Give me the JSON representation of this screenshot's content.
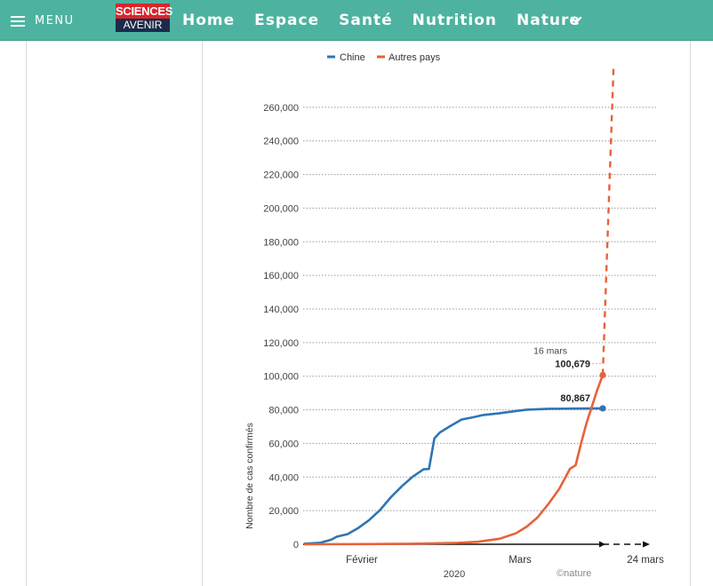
{
  "header": {
    "menu_label": "MENU",
    "logo_top": "SCIENCES",
    "logo_bottom": "AVENIR",
    "nav": [
      "Home",
      "Espace",
      "Santé",
      "Nutrition",
      "Nature"
    ],
    "colors": {
      "bar": "#4db3a0",
      "logo_red": "#d8262c",
      "logo_navy": "#1c2b4a"
    }
  },
  "chart_data": {
    "type": "line",
    "title": "",
    "xlabel": "2020",
    "ylabel": "Nombre de cas confirmés",
    "ylim": [
      0,
      280000
    ],
    "y_ticks": [
      "0",
      "20,000",
      "40,000",
      "60,000",
      "80,000",
      "100,000",
      "120,000",
      "140,000",
      "160,000",
      "180,000",
      "200,000",
      "220,000",
      "240,000",
      "260,000"
    ],
    "x_ticks": [
      "Février",
      "Mars",
      "24 mars"
    ],
    "grid": "dotted-horizontal",
    "legend": {
      "placement": "top-left",
      "entries": [
        {
          "name": "Chine",
          "color": "#2f74b5"
        },
        {
          "name": "Autres pays",
          "color": "#e8613a"
        }
      ]
    },
    "series": [
      {
        "name": "Chine",
        "color": "#2f74b5",
        "points": [
          [
            "2020-01-21",
            300
          ],
          [
            "2020-01-24",
            900
          ],
          [
            "2020-01-26",
            2700
          ],
          [
            "2020-01-27",
            4500
          ],
          [
            "2020-01-29",
            6000
          ],
          [
            "2020-01-31",
            9700
          ],
          [
            "2020-02-02",
            14400
          ],
          [
            "2020-02-04",
            20400
          ],
          [
            "2020-02-06",
            28000
          ],
          [
            "2020-02-08",
            34500
          ],
          [
            "2020-02-10",
            40200
          ],
          [
            "2020-02-12",
            44600
          ],
          [
            "2020-02-13",
            44800
          ],
          [
            "2020-02-14",
            63000
          ],
          [
            "2020-02-15",
            66500
          ],
          [
            "2020-02-17",
            70500
          ],
          [
            "2020-02-19",
            74200
          ],
          [
            "2020-02-21",
            75500
          ],
          [
            "2020-02-23",
            76900
          ],
          [
            "2020-02-26",
            78000
          ],
          [
            "2020-02-29",
            79300
          ],
          [
            "2020-03-02",
            80100
          ],
          [
            "2020-03-06",
            80600
          ],
          [
            "2020-03-10",
            80750
          ],
          [
            "2020-03-16",
            80867
          ]
        ]
      },
      {
        "name": "Autres pays",
        "color": "#e8613a",
        "points": [
          [
            "2020-01-21",
            0
          ],
          [
            "2020-02-01",
            100
          ],
          [
            "2020-02-10",
            300
          ],
          [
            "2020-02-18",
            800
          ],
          [
            "2020-02-22",
            1500
          ],
          [
            "2020-02-26",
            3300
          ],
          [
            "2020-02-29",
            6500
          ],
          [
            "2020-03-02",
            10500
          ],
          [
            "2020-03-04",
            16000
          ],
          [
            "2020-03-06",
            24000
          ],
          [
            "2020-03-08",
            33000
          ],
          [
            "2020-03-10",
            45000
          ],
          [
            "2020-03-11",
            47000
          ],
          [
            "2020-03-12",
            60000
          ],
          [
            "2020-03-13",
            72000
          ],
          [
            "2020-03-14",
            82000
          ],
          [
            "2020-03-15",
            92000
          ],
          [
            "2020-03-16",
            100679
          ]
        ],
        "projection": [
          [
            "2020-03-16",
            100679
          ],
          [
            "2020-03-18",
            285000
          ]
        ]
      }
    ],
    "annotations": [
      {
        "date": "16 mars",
        "value_label": "100,679"
      },
      {
        "value_label": "80,867"
      }
    ],
    "credit": "©nature"
  }
}
